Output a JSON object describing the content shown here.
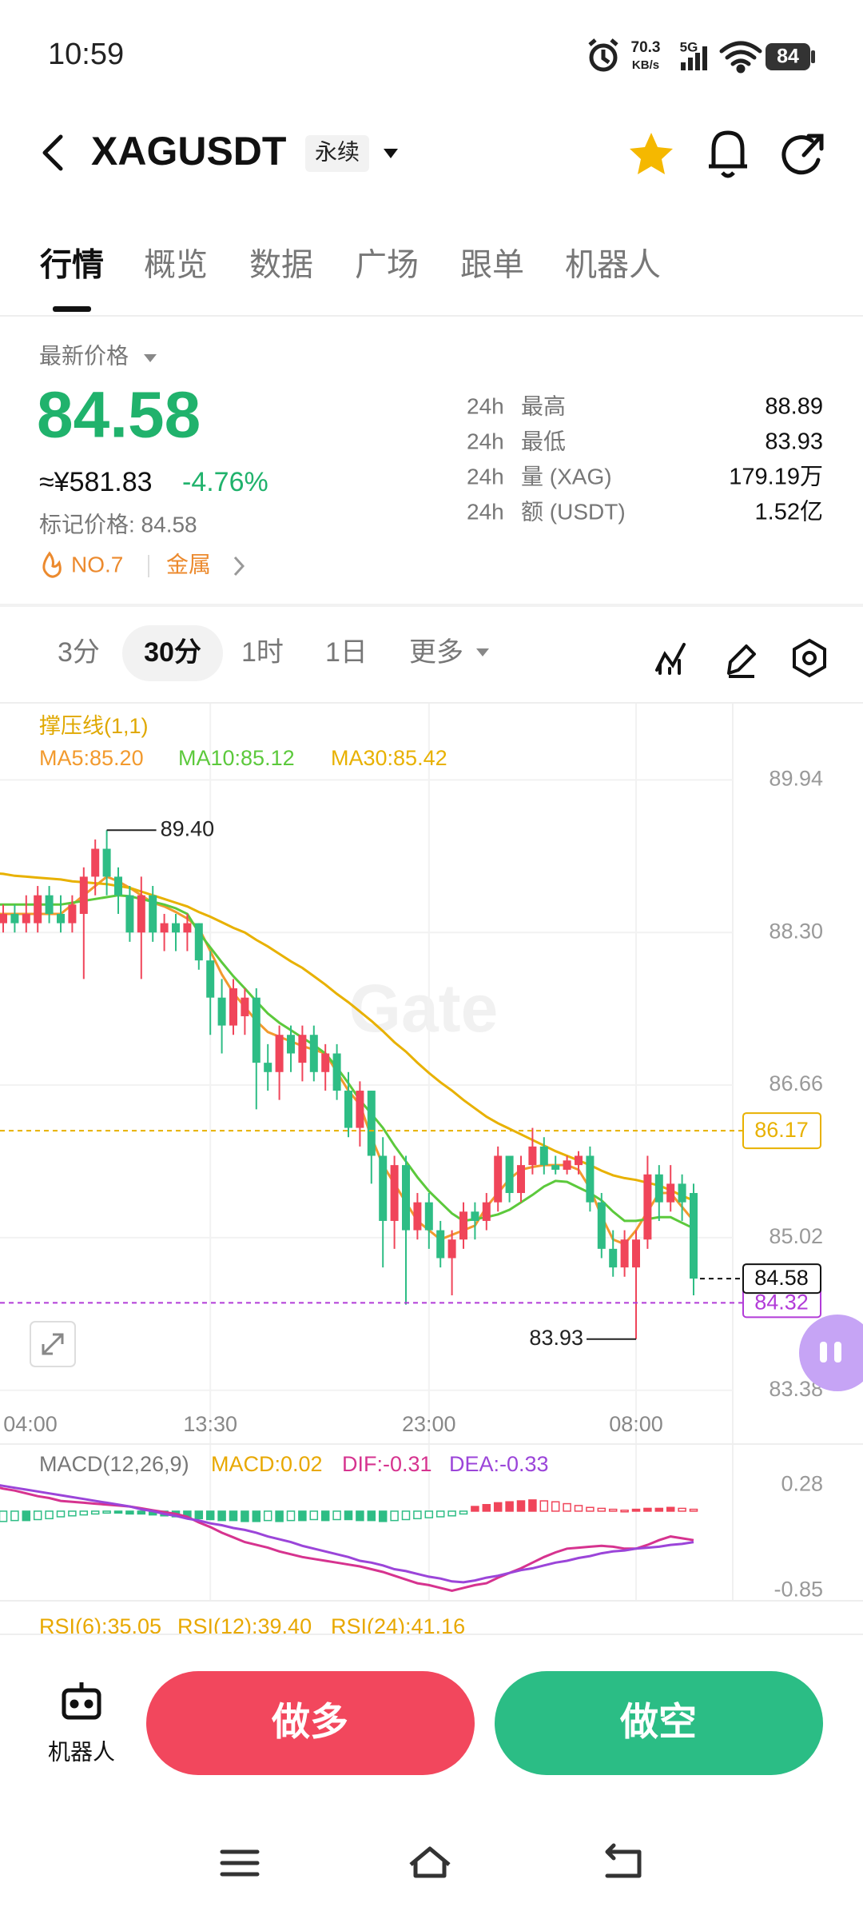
{
  "status_bar": {
    "time": "10:59",
    "speed": "70.3",
    "speed_unit": "KB/s",
    "network": "5G",
    "battery": "84"
  },
  "header": {
    "symbol": "XAGUSDT",
    "badge": "永续"
  },
  "tabs": [
    "行情",
    "概览",
    "数据",
    "广场",
    "跟单",
    "机器人"
  ],
  "price_block": {
    "caption": "最新价格",
    "price": "84.58",
    "cny": "≈¥581.83",
    "change": "-4.76%",
    "mark_price": "标记价格: 84.58",
    "rank": "NO.7",
    "sector": "金属"
  },
  "stats": [
    {
      "period": "24h",
      "label": "最高",
      "value": "88.89"
    },
    {
      "period": "24h",
      "label": "最低",
      "value": "83.93"
    },
    {
      "period": "24h",
      "label": "量 (XAG)",
      "value": "179.19万"
    },
    {
      "period": "24h",
      "label": "额 (USDT)",
      "value": "1.52亿"
    }
  ],
  "intervals": [
    "3分",
    "30分",
    "1时",
    "1日",
    "更多"
  ],
  "kline": {
    "type": "candlestick",
    "indicator_label": "撑压线(1,1)",
    "watermark": "Gate",
    "up_color": "#f0455a",
    "down_color": "#2ebd85",
    "ylim": [
      83.24,
      90.76
    ],
    "yticks": [
      89.94,
      {
        "value": 88.3,
        "label": "88.30"
      },
      86.66,
      85.02,
      83.38
    ],
    "grid": true,
    "categories": [
      "04:00",
      null,
      null,
      null,
      null,
      null,
      null,
      null,
      null,
      null,
      null,
      null,
      null,
      null,
      null,
      null,
      null,
      null,
      null,
      "13:30",
      null,
      null,
      null,
      null,
      null,
      null,
      null,
      null,
      null,
      null,
      null,
      null,
      null,
      null,
      null,
      null,
      null,
      null,
      "23:00",
      null,
      null,
      null,
      null,
      null,
      null,
      null,
      null,
      null,
      null,
      null,
      null,
      null,
      null,
      null,
      null,
      null,
      "08:00",
      null,
      null,
      null,
      null,
      null
    ],
    "candles": [
      [
        88.5,
        88.6,
        88.3,
        88.4
      ],
      [
        88.4,
        88.6,
        88.3,
        88.5
      ],
      [
        88.5,
        88.6,
        88.3,
        88.4
      ],
      [
        88.4,
        88.7,
        88.3,
        88.5
      ],
      [
        88.4,
        88.8,
        88.3,
        88.7
      ],
      [
        88.7,
        88.8,
        88.4,
        88.5
      ],
      [
        88.5,
        88.7,
        88.3,
        88.4
      ],
      [
        88.4,
        88.7,
        88.3,
        88.6
      ],
      [
        88.5,
        89.0,
        87.8,
        88.9
      ],
      [
        88.9,
        89.3,
        88.7,
        89.2
      ],
      [
        89.2,
        89.4,
        88.7,
        88.9
      ],
      [
        88.9,
        89.0,
        88.5,
        88.7
      ],
      [
        88.7,
        88.8,
        88.2,
        88.3
      ],
      [
        88.3,
        88.9,
        87.8,
        88.7
      ],
      [
        88.7,
        88.8,
        88.2,
        88.3
      ],
      [
        88.3,
        88.5,
        88.1,
        88.4
      ],
      [
        88.4,
        88.5,
        88.1,
        88.3
      ],
      [
        88.3,
        88.5,
        88.1,
        88.4
      ],
      [
        88.4,
        88.4,
        87.9,
        88.0
      ],
      [
        88.0,
        88.1,
        87.2,
        87.6
      ],
      [
        87.6,
        87.8,
        87.0,
        87.3
      ],
      [
        87.3,
        87.8,
        87.2,
        87.7
      ],
      [
        87.4,
        87.7,
        87.2,
        87.6
      ],
      [
        87.6,
        87.7,
        86.4,
        86.9
      ],
      [
        86.9,
        87.1,
        86.6,
        86.8
      ],
      [
        86.8,
        87.3,
        86.5,
        87.2
      ],
      [
        87.2,
        87.3,
        86.8,
        87.0
      ],
      [
        86.9,
        87.3,
        86.7,
        87.2
      ],
      [
        87.2,
        87.3,
        86.7,
        86.8
      ],
      [
        86.8,
        87.1,
        86.6,
        87.0
      ],
      [
        87.0,
        87.1,
        86.5,
        86.6
      ],
      [
        86.6,
        86.8,
        86.1,
        86.2
      ],
      [
        86.2,
        86.7,
        86.0,
        86.6
      ],
      [
        86.6,
        86.6,
        85.6,
        85.9
      ],
      [
        85.9,
        86.1,
        84.7,
        85.2
      ],
      [
        85.2,
        85.9,
        84.9,
        85.8
      ],
      [
        85.8,
        85.9,
        84.3,
        85.1
      ],
      [
        85.1,
        85.5,
        85.0,
        85.4
      ],
      [
        85.4,
        85.5,
        84.9,
        85.1
      ],
      [
        85.1,
        85.2,
        84.7,
        84.8
      ],
      [
        84.8,
        85.1,
        84.4,
        85.0
      ],
      [
        85.0,
        85.4,
        84.9,
        85.3
      ],
      [
        85.3,
        85.4,
        85.0,
        85.2
      ],
      [
        85.2,
        85.5,
        85.1,
        85.4
      ],
      [
        85.4,
        86.0,
        85.3,
        85.9
      ],
      [
        85.9,
        85.9,
        85.4,
        85.5
      ],
      [
        85.5,
        85.9,
        85.4,
        85.8
      ],
      [
        85.8,
        86.2,
        85.7,
        86.0
      ],
      [
        86.0,
        86.1,
        85.7,
        85.8
      ],
      [
        85.8,
        85.9,
        85.7,
        85.75
      ],
      [
        85.75,
        85.9,
        85.7,
        85.85
      ],
      [
        85.8,
        85.95,
        85.7,
        85.9
      ],
      [
        85.9,
        86.0,
        85.3,
        85.4
      ],
      [
        85.4,
        85.5,
        84.8,
        84.9
      ],
      [
        84.9,
        85.1,
        84.6,
        84.7
      ],
      [
        84.7,
        85.1,
        84.6,
        85.0
      ],
      [
        84.7,
        85.1,
        83.93,
        85.0
      ],
      [
        85.0,
        85.9,
        84.9,
        85.7
      ],
      [
        85.7,
        85.8,
        85.2,
        85.4
      ],
      [
        85.4,
        85.8,
        85.3,
        85.6
      ],
      [
        85.6,
        85.7,
        85.2,
        85.4
      ],
      [
        85.5,
        85.6,
        84.4,
        84.58
      ]
    ],
    "max_label": "89.40",
    "min_label": "83.93",
    "ma": [
      {
        "label": "MA5:85.20",
        "color": "#f29a2e",
        "values": [
          88.5,
          88.5,
          88.5,
          88.5,
          88.5,
          88.5,
          88.5,
          88.6,
          88.7,
          88.8,
          88.9,
          88.85,
          88.78,
          88.7,
          88.62,
          88.58,
          88.52,
          88.45,
          88.35,
          88.1,
          87.85,
          87.65,
          87.5,
          87.35,
          87.23,
          87.18,
          87.13,
          87.08,
          87.04,
          87.0,
          86.8,
          86.6,
          86.45,
          86.1,
          85.8,
          85.6,
          85.4,
          85.2,
          85.1,
          85.0,
          85.05,
          85.1,
          85.15,
          85.35,
          85.5,
          85.65,
          85.75,
          85.78,
          85.8,
          85.8,
          85.8,
          85.75,
          85.55,
          85.25,
          85.0,
          84.95,
          85.1,
          85.3,
          85.5,
          85.5,
          85.35,
          85.2
        ]
      },
      {
        "label": "MA10:85.12",
        "color": "#5cc93c",
        "values": [
          88.6,
          88.6,
          88.6,
          88.6,
          88.6,
          88.6,
          88.6,
          88.62,
          88.64,
          88.66,
          88.68,
          88.7,
          88.69,
          88.66,
          88.63,
          88.6,
          88.56,
          88.5,
          88.3,
          88.14,
          87.98,
          87.83,
          87.7,
          87.56,
          87.43,
          87.33,
          87.25,
          87.17,
          87.09,
          87.0,
          86.85,
          86.68,
          86.5,
          86.35,
          86.2,
          86.01,
          85.84,
          85.67,
          85.52,
          85.4,
          85.28,
          85.2,
          85.22,
          85.24,
          85.27,
          85.32,
          85.4,
          85.48,
          85.57,
          85.63,
          85.62,
          85.56,
          85.5,
          85.42,
          85.3,
          85.2,
          85.2,
          85.22,
          85.24,
          85.24,
          85.18,
          85.12
        ]
      },
      {
        "label": "MA30:85.42",
        "color": "#e8b100",
        "values": [
          88.94,
          88.93,
          88.91,
          88.9,
          88.89,
          88.88,
          88.87,
          88.85,
          88.84,
          88.83,
          88.82,
          88.8,
          88.78,
          88.74,
          88.7,
          88.66,
          88.62,
          88.58,
          88.52,
          88.47,
          88.41,
          88.35,
          88.3,
          88.22,
          88.15,
          88.07,
          87.99,
          87.92,
          87.83,
          87.74,
          87.64,
          87.55,
          87.45,
          87.35,
          87.24,
          87.12,
          87.02,
          86.9,
          86.79,
          86.69,
          86.6,
          86.5,
          86.41,
          86.32,
          86.25,
          86.19,
          86.13,
          86.07,
          86.01,
          85.95,
          85.9,
          85.85,
          85.8,
          85.74,
          85.69,
          85.66,
          85.64,
          85.61,
          85.58,
          85.53,
          85.47,
          85.42
        ]
      }
    ],
    "levels": [
      {
        "value": 86.17,
        "label": "86.17",
        "color": "#e8b100"
      },
      {
        "value": 84.32,
        "label": "84.32",
        "color": "#b23cd8"
      },
      {
        "value": 84.58,
        "label": "84.58",
        "color": "#111111"
      }
    ]
  },
  "macd": {
    "label": "MACD(12,26,9)",
    "macd_label": "MACD:0.02",
    "dif_label": "DIF:-0.31",
    "dea_label": "DEA:-0.33",
    "macd_color": "#e8a800",
    "dif_color": "#d6338f",
    "dea_color": "#9b45d9",
    "ylim": [
      -0.94,
      0.64
    ],
    "yticks": [
      0.28,
      -0.85
    ],
    "hist": [
      -0.12,
      -0.11,
      -0.1,
      -0.1,
      -0.09,
      -0.08,
      -0.06,
      -0.05,
      -0.04,
      -0.03,
      -0.02,
      -0.02,
      -0.03,
      -0.03,
      -0.04,
      -0.05,
      -0.06,
      -0.07,
      -0.08,
      -0.09,
      -0.1,
      -0.1,
      -0.11,
      -0.11,
      -0.1,
      -0.11,
      -0.1,
      -0.1,
      -0.09,
      -0.1,
      -0.09,
      -0.09,
      -0.1,
      -0.1,
      -0.11,
      -0.1,
      -0.09,
      -0.08,
      -0.07,
      -0.06,
      -0.05,
      -0.03,
      0.05,
      0.07,
      0.09,
      0.1,
      0.11,
      0.12,
      0.11,
      0.1,
      0.08,
      0.06,
      0.04,
      0.03,
      0.02,
      0.01,
      0.02,
      0.03,
      0.03,
      0.04,
      0.03,
      0.02
    ],
    "dif": [
      0.27,
      0.24,
      0.22,
      0.19,
      0.16,
      0.14,
      0.11,
      0.1,
      0.09,
      0.08,
      0.07,
      0.06,
      0.05,
      0.03,
      0.01,
      -0.01,
      -0.03,
      -0.06,
      -0.12,
      -0.17,
      -0.23,
      -0.28,
      -0.33,
      -0.36,
      -0.39,
      -0.43,
      -0.46,
      -0.49,
      -0.51,
      -0.53,
      -0.55,
      -0.57,
      -0.59,
      -0.62,
      -0.65,
      -0.69,
      -0.73,
      -0.77,
      -0.79,
      -0.82,
      -0.85,
      -0.82,
      -0.79,
      -0.77,
      -0.71,
      -0.66,
      -0.61,
      -0.55,
      -0.49,
      -0.44,
      -0.4,
      -0.39,
      -0.38,
      -0.37,
      -0.38,
      -0.4,
      -0.4,
      -0.36,
      -0.31,
      -0.27,
      -0.29,
      -0.31
    ],
    "dea": [
      0.29,
      0.27,
      0.25,
      0.23,
      0.21,
      0.19,
      0.17,
      0.15,
      0.13,
      0.11,
      0.09,
      0.07,
      0.05,
      0.02,
      0.0,
      -0.03,
      -0.05,
      -0.08,
      -0.1,
      -0.13,
      -0.15,
      -0.18,
      -0.2,
      -0.23,
      -0.27,
      -0.3,
      -0.33,
      -0.37,
      -0.4,
      -0.43,
      -0.46,
      -0.49,
      -0.53,
      -0.55,
      -0.58,
      -0.62,
      -0.64,
      -0.67,
      -0.7,
      -0.72,
      -0.75,
      -0.76,
      -0.74,
      -0.71,
      -0.69,
      -0.66,
      -0.63,
      -0.61,
      -0.58,
      -0.55,
      -0.53,
      -0.5,
      -0.48,
      -0.45,
      -0.43,
      -0.42,
      -0.4,
      -0.39,
      -0.38,
      -0.36,
      -0.35,
      -0.33
    ]
  },
  "rsi": {
    "labels": [
      "RSI(6):35.05",
      "RSI(12):39.40",
      "RSI(24):41.16"
    ],
    "color": "#e8a800"
  },
  "bottom_bar": {
    "robot": "机器人",
    "long": "做多",
    "short": "做空"
  }
}
